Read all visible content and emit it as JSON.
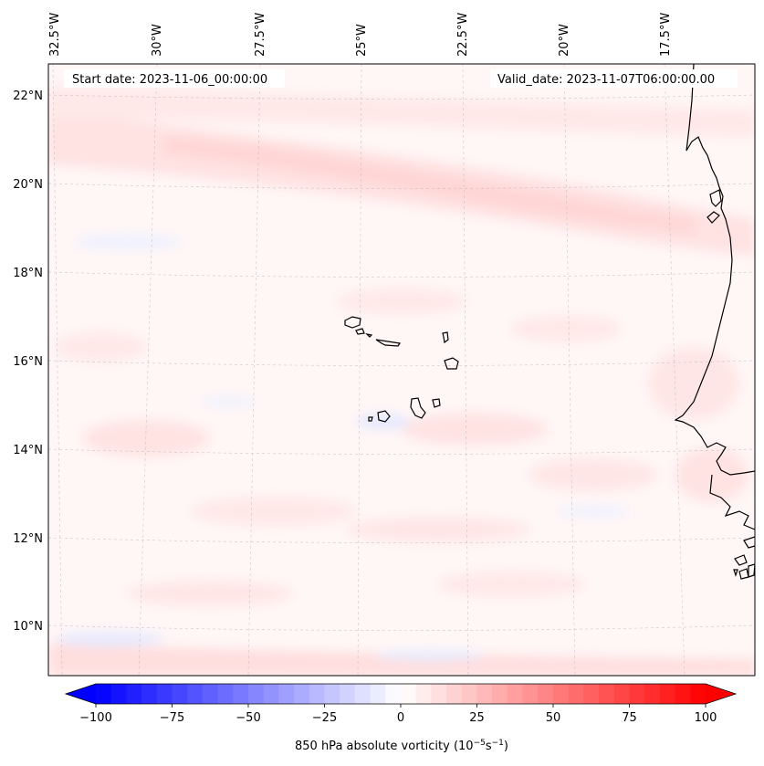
{
  "map": {
    "start_date": "Start date: 2023-11-06_00:00:00",
    "valid_date": "Valid_date: 2023-11-07T06:00:00.00",
    "lon_labels": [
      "32.5°W",
      "30°W",
      "27.5°W",
      "25°W",
      "22.5°W",
      "20°W",
      "17.5°W"
    ],
    "lat_labels": [
      "22°N",
      "20°N",
      "18°N",
      "16°N",
      "14°N",
      "12°N",
      "10°N"
    ],
    "features": [
      "Cape Verde islands",
      "West African coastline"
    ]
  },
  "colorbar": {
    "label_text": "850 hPa absolute vorticity (10",
    "label_exp1": "−5",
    "label_mid": "s",
    "label_exp2": "−1",
    "label_end": ")",
    "min": -100,
    "max": 100,
    "tick_values": [
      -100,
      -75,
      -50,
      -25,
      0,
      25,
      50,
      75,
      100
    ],
    "tick_labels": [
      "−100",
      "−75",
      "−50",
      "−25",
      "0",
      "25",
      "50",
      "75",
      "100"
    ],
    "color_low": "#0000ff",
    "color_mid": "#ffffff",
    "color_high": "#ff0000"
  },
  "chart_data": {
    "type": "heatmap",
    "title": "850 hPa absolute vorticity",
    "units": "10^-5 s^-1",
    "value_range": [
      -100,
      100
    ],
    "lon_range_deg": [
      -32.5,
      -15
    ],
    "lat_range_deg": [
      9,
      22.8
    ],
    "dominant_field": "weak positive vorticity (approx. 0 to 10) with a band near 20°N"
  }
}
